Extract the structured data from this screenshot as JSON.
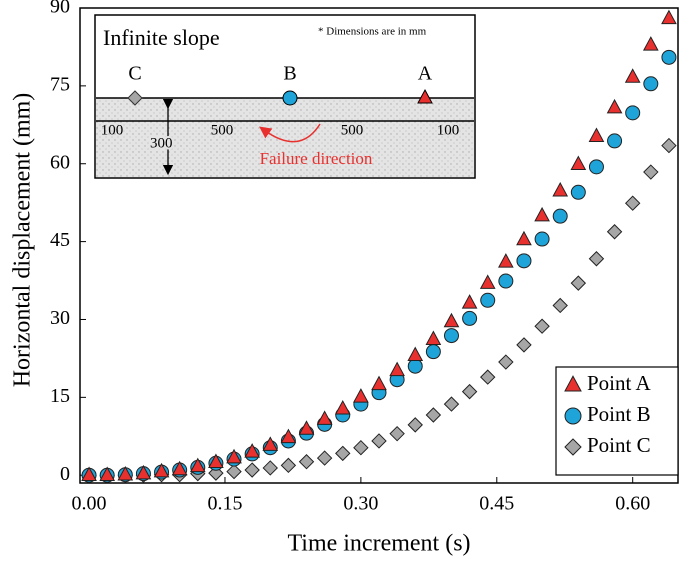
{
  "chart_data": {
    "type": "scatter",
    "xlabel": "Time increment (s)",
    "ylabel": "Horizontal displacement (mm)",
    "x": [
      0,
      0.02,
      0.04,
      0.06,
      0.08,
      0.1,
      0.12,
      0.14,
      0.16,
      0.18,
      0.2,
      0.22,
      0.24,
      0.26,
      0.28,
      0.3,
      0.32,
      0.34,
      0.36,
      0.38,
      0.4,
      0.42,
      0.44,
      0.46,
      0.48,
      0.5,
      0.52,
      0.54,
      0.56,
      0.58,
      0.6,
      0.62,
      0.64
    ],
    "series": [
      {
        "name": "Point A",
        "color": "#e8312f",
        "marker": "triangle",
        "values": [
          0,
          0.0,
          0.1,
          0.3,
          0.7,
          1.1,
          1.7,
          2.5,
          3.4,
          4.5,
          5.8,
          7.3,
          8.9,
          10.8,
          12.8,
          15.1,
          17.5,
          20.2,
          23.1,
          26.2,
          29.6,
          33.2,
          37.0,
          41.1,
          45.4,
          50.0,
          54.8,
          59.9,
          65.3,
          70.8,
          76.7,
          82.9,
          88.0
        ]
      },
      {
        "name": "Point B",
        "color": "#1ea4d8",
        "marker": "circle",
        "values": [
          0,
          0.0,
          0.1,
          0.3,
          0.6,
          1.0,
          1.5,
          2.3,
          3.1,
          4.1,
          5.3,
          6.6,
          8.1,
          9.8,
          11.6,
          13.7,
          15.9,
          18.4,
          21.0,
          23.8,
          26.9,
          30.2,
          33.7,
          37.4,
          41.3,
          45.5,
          49.9,
          54.5,
          59.4,
          64.4,
          69.8,
          75.4,
          80.5
        ]
      },
      {
        "name": "Point C",
        "color": "#a6a6a6",
        "marker": "diamond",
        "values": [
          0,
          0.0,
          0.0,
          0.0,
          0.1,
          0.1,
          0.3,
          0.4,
          0.7,
          1.0,
          1.4,
          1.9,
          2.6,
          3.3,
          4.2,
          5.3,
          6.6,
          8.0,
          9.7,
          11.6,
          13.7,
          16.1,
          18.9,
          21.8,
          25.1,
          28.7,
          32.7,
          37.0,
          41.7,
          46.9,
          52.4,
          58.4,
          63.5
        ]
      }
    ],
    "xlim": [
      -0.01,
      0.65
    ],
    "xticks": [
      {
        "value": 0,
        "label": "0.00"
      },
      {
        "value": 0.15,
        "label": "0.15"
      },
      {
        "value": 0.3,
        "label": "0.30"
      },
      {
        "value": 0.45,
        "label": "0.45"
      },
      {
        "value": 0.6,
        "label": "0.60"
      }
    ],
    "ylim": [
      -1.5,
      90
    ],
    "yticks": [
      0,
      15,
      30,
      45,
      60,
      75,
      90
    ],
    "grid": false,
    "legend": "lower right",
    "inset": {
      "title": "Infinite slope",
      "note": "* Dimensions are in mm",
      "point_labels": [
        "C",
        "B",
        "A"
      ],
      "dimensions": [
        "100",
        "500",
        "500",
        "100",
        "300"
      ],
      "arrow_label": "Failure direction"
    }
  }
}
